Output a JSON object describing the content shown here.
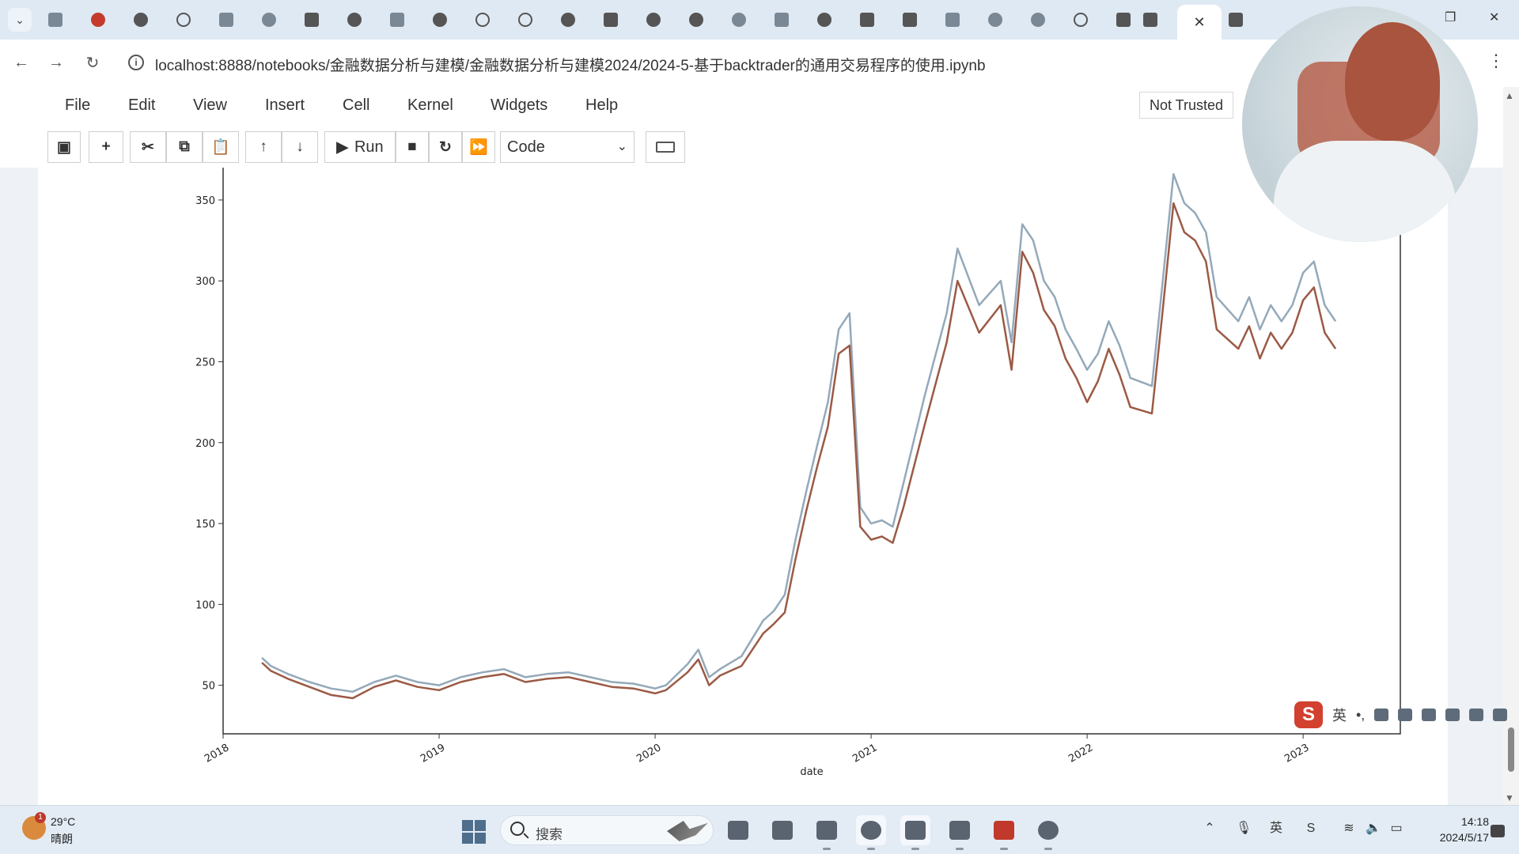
{
  "browser": {
    "url": "localhost:8888/notebooks/金融数据分析与建模/金融数据分析与建模2024/2024-5-基于backtrader的通用交易程序的使用.ipynb",
    "active_tab_close": "✕"
  },
  "menu": {
    "items": [
      "File",
      "Edit",
      "View",
      "Insert",
      "Cell",
      "Kernel",
      "Widgets",
      "Help"
    ],
    "trust_status": "Not Trusted"
  },
  "toolbar": {
    "run_label": "Run",
    "cell_type": "Code"
  },
  "chart_data": {
    "type": "line",
    "xlabel": "date",
    "x_ticks": [
      "2018",
      "2019",
      "2020",
      "2021",
      "2022",
      "2023"
    ],
    "y_ticks": [
      50,
      100,
      150,
      200,
      250,
      300,
      350
    ],
    "ylim": [
      20,
      370
    ],
    "xlim": [
      2018.0,
      2023.45
    ],
    "colors": [
      "#94a9b9",
      "#9b5a45"
    ],
    "series": [
      {
        "x": [
          2018.18,
          2018.22,
          2018.3,
          2018.4,
          2018.5,
          2018.6,
          2018.7,
          2018.8,
          2018.9,
          2019.0,
          2019.1,
          2019.2,
          2019.3,
          2019.4,
          2019.5,
          2019.6,
          2019.7,
          2019.8,
          2019.9,
          2020.0,
          2020.05,
          2020.15,
          2020.2,
          2020.25,
          2020.3,
          2020.4,
          2020.5,
          2020.55,
          2020.6,
          2020.65,
          2020.7,
          2020.75,
          2020.8,
          2020.85,
          2020.9,
          2020.95,
          2021.0,
          2021.05,
          2021.1,
          2021.15,
          2021.25,
          2021.35,
          2021.4,
          2021.5,
          2021.6,
          2021.65,
          2021.7,
          2021.75,
          2021.8,
          2021.85,
          2021.9,
          2021.95,
          2022.0,
          2022.05,
          2022.1,
          2022.15,
          2022.2,
          2022.3,
          2022.35,
          2022.4,
          2022.45,
          2022.5,
          2022.55,
          2022.6,
          2022.7,
          2022.75,
          2022.8,
          2022.85,
          2022.9,
          2022.95,
          2023.0,
          2023.05,
          2023.1,
          2023.15
        ],
        "y": [
          67,
          62,
          57,
          52,
          48,
          46,
          52,
          56,
          52,
          50,
          55,
          58,
          60,
          55,
          57,
          58,
          55,
          52,
          51,
          48,
          50,
          63,
          72,
          55,
          60,
          68,
          90,
          96,
          106,
          140,
          170,
          198,
          225,
          270,
          280,
          160,
          150,
          152,
          148,
          175,
          230,
          280,
          320,
          285,
          300,
          262,
          335,
          325,
          300,
          290,
          270,
          258,
          245,
          255,
          275,
          260,
          240,
          235,
          300,
          366,
          348,
          342,
          330,
          290,
          275,
          290,
          270,
          285,
          275,
          285,
          305,
          312,
          285,
          275
        ]
      },
      {
        "x": [
          2018.18,
          2018.22,
          2018.3,
          2018.4,
          2018.5,
          2018.6,
          2018.7,
          2018.8,
          2018.9,
          2019.0,
          2019.1,
          2019.2,
          2019.3,
          2019.4,
          2019.5,
          2019.6,
          2019.7,
          2019.8,
          2019.9,
          2020.0,
          2020.05,
          2020.15,
          2020.2,
          2020.25,
          2020.3,
          2020.4,
          2020.5,
          2020.55,
          2020.6,
          2020.65,
          2020.7,
          2020.75,
          2020.8,
          2020.85,
          2020.9,
          2020.95,
          2021.0,
          2021.05,
          2021.1,
          2021.15,
          2021.25,
          2021.35,
          2021.4,
          2021.5,
          2021.6,
          2021.65,
          2021.7,
          2021.75,
          2021.8,
          2021.85,
          2021.9,
          2021.95,
          2022.0,
          2022.05,
          2022.1,
          2022.15,
          2022.2,
          2022.3,
          2022.35,
          2022.4,
          2022.45,
          2022.5,
          2022.55,
          2022.6,
          2022.7,
          2022.75,
          2022.8,
          2022.85,
          2022.9,
          2022.95,
          2023.0,
          2023.05,
          2023.1,
          2023.15
        ],
        "y": [
          64,
          59,
          54,
          49,
          44,
          42,
          49,
          53,
          49,
          47,
          52,
          55,
          57,
          52,
          54,
          55,
          52,
          49,
          48,
          45,
          47,
          58,
          66,
          50,
          56,
          62,
          82,
          88,
          95,
          128,
          158,
          185,
          210,
          255,
          260,
          148,
          140,
          142,
          138,
          160,
          212,
          262,
          300,
          268,
          285,
          245,
          318,
          305,
          282,
          272,
          252,
          240,
          225,
          238,
          258,
          242,
          222,
          218,
          282,
          348,
          330,
          325,
          312,
          270,
          258,
          272,
          252,
          268,
          258,
          268,
          288,
          296,
          268,
          258
        ]
      }
    ]
  }
}
